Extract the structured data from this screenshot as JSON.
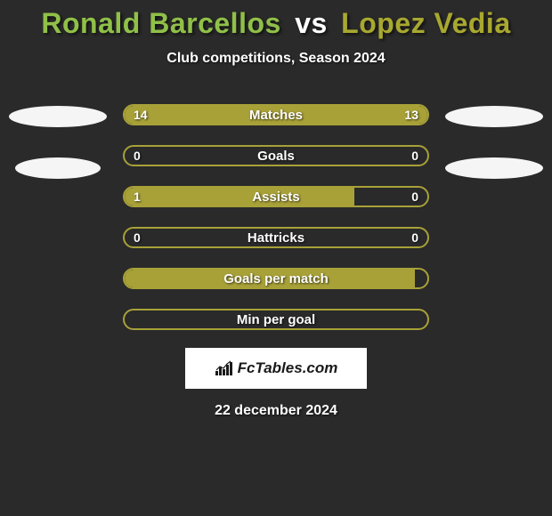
{
  "background_color": "#2a2a2a",
  "title": {
    "player1": "Ronald Barcellos",
    "vs": "vs",
    "player2": "Lopez Vedia",
    "player1_color": "#90c048",
    "player2_color": "#a8a830"
  },
  "subtitle": "Club competitions, Season 2024",
  "side_ellipse_color": "#f5f5f5",
  "stats": [
    {
      "label": "Matches",
      "left_val": "14",
      "right_val": "13",
      "left_pct": 51.8,
      "right_pct": 48.2,
      "left_color": "#a8a138",
      "right_color": "#a8a138",
      "border_color": "#a8a138",
      "show_ellipses": true
    },
    {
      "label": "Goals",
      "left_val": "0",
      "right_val": "0",
      "left_pct": 0,
      "right_pct": 0,
      "left_color": "#a8a138",
      "right_color": "#a8a138",
      "border_color": "#a8a138",
      "show_ellipses": true
    },
    {
      "label": "Assists",
      "left_val": "1",
      "right_val": "0",
      "left_pct": 76,
      "right_pct": 0,
      "left_color": "#a8a138",
      "right_color": "#c9b83d",
      "border_color": "#a8a138",
      "show_ellipses": false
    },
    {
      "label": "Hattricks",
      "left_val": "0",
      "right_val": "0",
      "left_pct": 0,
      "right_pct": 0,
      "left_color": "#a8a138",
      "right_color": "#a8a138",
      "border_color": "#a8a138",
      "show_ellipses": false
    },
    {
      "label": "Goals per match",
      "left_val": "",
      "right_val": "",
      "left_pct": 96,
      "right_pct": 0,
      "left_color": "#a8a138",
      "right_color": "#a8a138",
      "border_color": "#a8a138",
      "show_ellipses": false
    },
    {
      "label": "Min per goal",
      "left_val": "",
      "right_val": "",
      "left_pct": 0,
      "right_pct": 0,
      "left_color": "#a8a138",
      "right_color": "#a8a138",
      "border_color": "#a8a138",
      "show_ellipses": false
    }
  ],
  "logo_text": "FcTables.com",
  "date": "22 december 2024"
}
